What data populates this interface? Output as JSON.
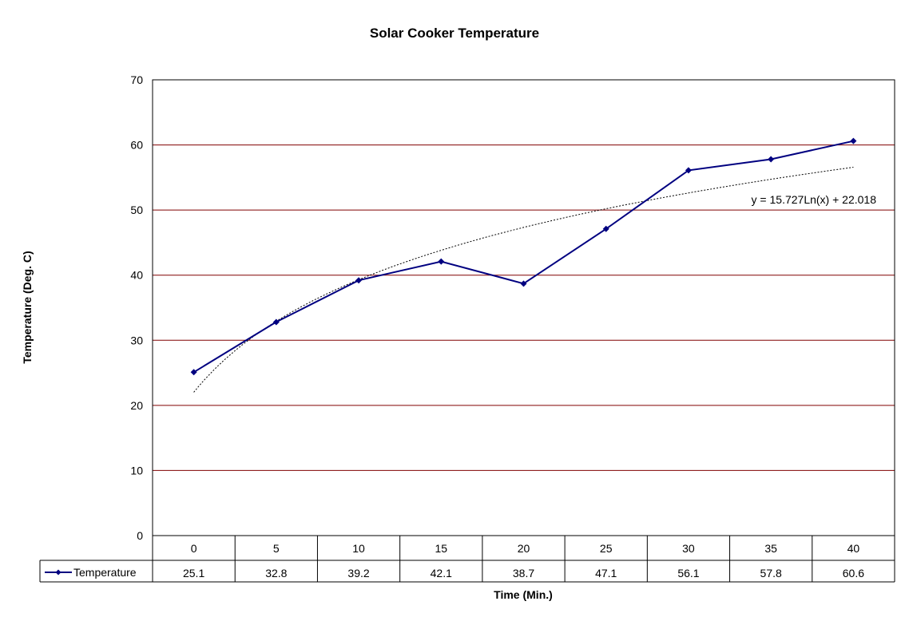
{
  "chart_data": {
    "type": "line",
    "title": "Solar Cooker Temperature",
    "xlabel": "Time (Min.)",
    "ylabel": "Temperature (Deg. C)",
    "ylim": [
      0,
      70
    ],
    "yticks": [
      0,
      10,
      20,
      30,
      40,
      50,
      60,
      70
    ],
    "grid": true,
    "categories": [
      "0",
      "5",
      "10",
      "15",
      "20",
      "25",
      "30",
      "35",
      "40"
    ],
    "series": [
      {
        "name": "Temperature",
        "values": [
          25.1,
          32.8,
          39.2,
          42.1,
          38.7,
          47.1,
          56.1,
          57.8,
          60.6
        ],
        "color": "#000080"
      }
    ],
    "data_table": {
      "row_label": "Temperature",
      "values": [
        "25.1",
        "32.8",
        "39.2",
        "42.1",
        "38.7",
        "47.1",
        "56.1",
        "57.8",
        "60.6"
      ]
    },
    "trendline": {
      "type": "logarithmic",
      "equation": "y = 15.727Ln(x) + 22.018",
      "a": 15.727,
      "b": 22.018
    },
    "colors": {
      "gridline": "#800000",
      "series": "#000080",
      "trendline": "#000000"
    }
  }
}
